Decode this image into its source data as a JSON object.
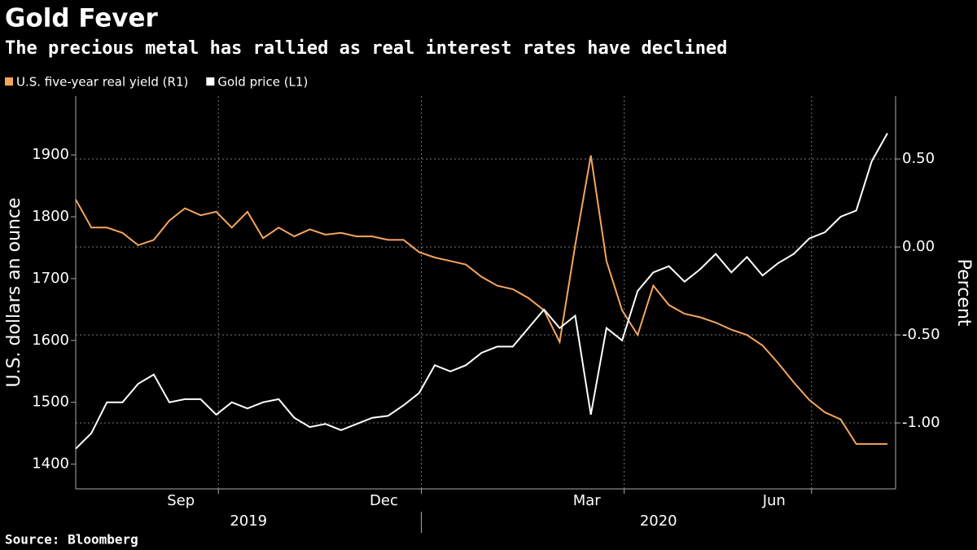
{
  "chart_data": {
    "type": "line",
    "title": "Gold Fever",
    "subtitle": "The precious metal has rallied as real interest rates have declined",
    "source": "Source: Bloomberg",
    "y_label": "U.S. dollars an ounce",
    "y2_label": "Percent",
    "categories": [
      null,
      null,
      null,
      null,
      null,
      null,
      null,
      "Sep",
      null,
      null,
      null,
      null,
      null,
      null,
      null,
      null,
      null,
      null,
      null,
      null,
      "Dec",
      null,
      null,
      null,
      null,
      null,
      null,
      null,
      null,
      null,
      null,
      null,
      null,
      "Mar",
      null,
      null,
      null,
      null,
      null,
      null,
      null,
      null,
      null,
      null,
      null,
      "Jun",
      null,
      null,
      null,
      null,
      null,
      null,
      null
    ],
    "year_labels": [
      "2019",
      "2020"
    ],
    "series": [
      {
        "name": "U.S. five-year real yield (R1)",
        "color": "#f5a55f",
        "axis": "y2",
        "values": [
          0.27,
          0.11,
          0.11,
          0.08,
          0.01,
          0.04,
          0.15,
          0.22,
          0.18,
          0.2,
          0.11,
          0.2,
          0.05,
          0.11,
          0.06,
          0.1,
          0.07,
          0.08,
          0.06,
          0.06,
          0.04,
          0.04,
          -0.03,
          -0.06,
          -0.08,
          -0.1,
          -0.17,
          -0.22,
          -0.24,
          -0.29,
          -0.36,
          -0.54,
          0.01,
          0.52,
          -0.08,
          -0.36,
          -0.5,
          -0.22,
          -0.33,
          -0.38,
          -0.4,
          -0.43,
          -0.47,
          -0.5,
          -0.56,
          -0.66,
          -0.77,
          -0.87,
          -0.94,
          -0.98,
          -1.12,
          -1.12,
          -1.12
        ]
      },
      {
        "name": "Gold price (L1)",
        "color": "#ffffff",
        "values": [
          1425,
          1450,
          1500,
          1500,
          1530,
          1545,
          1500,
          1505,
          1505,
          1480,
          1500,
          1490,
          1500,
          1505,
          1475,
          1460,
          1465,
          1455,
          1465,
          1475,
          1478,
          1495,
          1515,
          1560,
          1550,
          1560,
          1580,
          1590,
          1590,
          1620,
          1650,
          1620,
          1640,
          1480,
          1620,
          1600,
          1680,
          1710,
          1720,
          1695,
          1715,
          1740,
          1710,
          1735,
          1705,
          1725,
          1740,
          1765,
          1775,
          1800,
          1810,
          1890,
          1935
        ]
      }
    ],
    "ylim": [
      1360,
      1995
    ],
    "yticks": [
      1400,
      1500,
      1600,
      1700,
      1800,
      1900
    ],
    "y2lim": [
      -1.375,
      0.857
    ],
    "y2ticks": [
      {
        "value": 0.5,
        "label": "0.50"
      },
      {
        "value": 0,
        "label": "0.00"
      },
      {
        "value": -0.5,
        "label": "-0.50"
      },
      {
        "value": -1,
        "label": "-1.00"
      }
    ],
    "grid": true
  }
}
